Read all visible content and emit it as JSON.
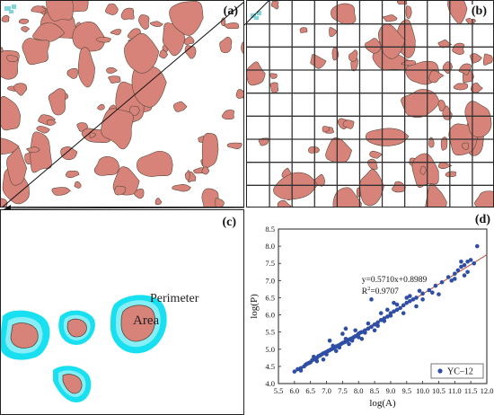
{
  "panels": {
    "a": "(a)",
    "b": "(b)",
    "c": "(c)",
    "d": "(d)"
  },
  "panel_c": {
    "area_label": "Area",
    "perimeter_label": "Perimeter"
  },
  "colors": {
    "patch_fill": "#d8837a",
    "patch_stroke": "#5a4a3a",
    "boundary_cyan": "#19e0f0",
    "boundary_light": "#86eef6",
    "grid": "#333333",
    "point": "#2f4fa6",
    "fit_line": "#c0392b"
  },
  "chart_data": {
    "type": "scatter",
    "xlabel": "log(A)",
    "ylabel": "log(P)",
    "xlim": [
      5.5,
      12.0
    ],
    "ylim": [
      4.0,
      8.5
    ],
    "xticks": [
      "5.5",
      "6.0",
      "6.5",
      "7.0",
      "7.5",
      "8.0",
      "8.5",
      "9.0",
      "9.5",
      "10.0",
      "10.5",
      "11.0",
      "11.5",
      "12.0"
    ],
    "yticks": [
      "4.0",
      "4.5",
      "5.0",
      "5.5",
      "6.0",
      "6.5",
      "7.0",
      "7.5",
      "8.0",
      "8.5"
    ],
    "legend": "YC–12",
    "legend_position": "bottom-right",
    "annotation": {
      "equation": "y=0.5710x+0.8989",
      "r2_prefix": "R",
      "r2_sup": "2",
      "r2_value": "=0.9707"
    },
    "fit": {
      "slope": 0.571,
      "intercept": 0.8989,
      "x_range": [
        6.0,
        12.0
      ]
    },
    "series": [
      {
        "name": "YC–12",
        "points": [
          [
            6.0,
            4.35
          ],
          [
            6.1,
            4.42
          ],
          [
            6.2,
            4.45
          ],
          [
            6.3,
            4.5
          ],
          [
            6.35,
            4.55
          ],
          [
            6.4,
            4.58
          ],
          [
            6.45,
            4.6
          ],
          [
            6.5,
            4.62
          ],
          [
            6.55,
            4.68
          ],
          [
            6.6,
            4.7
          ],
          [
            6.65,
            4.72
          ],
          [
            6.7,
            4.75
          ],
          [
            6.75,
            4.8
          ],
          [
            6.8,
            4.82
          ],
          [
            6.85,
            4.85
          ],
          [
            6.9,
            4.88
          ],
          [
            6.95,
            4.9
          ],
          [
            7.0,
            4.92
          ],
          [
            7.05,
            4.95
          ],
          [
            7.1,
            4.97
          ],
          [
            7.15,
            5.0
          ],
          [
            7.2,
            5.02
          ],
          [
            7.25,
            5.05
          ],
          [
            7.3,
            5.08
          ],
          [
            7.35,
            5.1
          ],
          [
            7.4,
            5.12
          ],
          [
            7.45,
            5.15
          ],
          [
            7.5,
            5.18
          ],
          [
            7.55,
            5.2
          ],
          [
            7.6,
            5.22
          ],
          [
            7.65,
            5.25
          ],
          [
            7.7,
            5.28
          ],
          [
            7.75,
            5.3
          ],
          [
            7.8,
            5.32
          ],
          [
            7.85,
            5.35
          ],
          [
            7.9,
            5.38
          ],
          [
            7.95,
            5.4
          ],
          [
            8.0,
            5.45
          ],
          [
            8.05,
            5.48
          ],
          [
            8.1,
            5.5
          ],
          [
            8.2,
            5.55
          ],
          [
            8.3,
            5.6
          ],
          [
            8.4,
            5.65
          ],
          [
            8.5,
            5.72
          ],
          [
            8.6,
            5.78
          ],
          [
            8.7,
            5.85
          ],
          [
            8.8,
            5.9
          ],
          [
            8.9,
            5.95
          ],
          [
            9.0,
            6.05
          ],
          [
            9.1,
            6.1
          ],
          [
            9.2,
            6.15
          ],
          [
            9.3,
            6.2
          ],
          [
            9.4,
            6.28
          ],
          [
            9.5,
            6.35
          ],
          [
            9.6,
            6.4
          ],
          [
            9.7,
            6.45
          ],
          [
            9.8,
            6.5
          ],
          [
            10.0,
            6.62
          ],
          [
            10.2,
            6.72
          ],
          [
            10.4,
            6.85
          ],
          [
            10.6,
            6.95
          ],
          [
            10.8,
            7.1
          ],
          [
            11.0,
            7.2
          ],
          [
            11.1,
            7.3
          ],
          [
            11.2,
            7.4
          ],
          [
            11.3,
            7.45
          ],
          [
            11.4,
            7.55
          ],
          [
            11.5,
            7.6
          ],
          [
            11.7,
            8.0
          ],
          [
            6.7,
            4.65
          ],
          [
            7.0,
            4.85
          ],
          [
            7.2,
            5.1
          ],
          [
            7.4,
            5.05
          ],
          [
            7.6,
            5.3
          ],
          [
            7.8,
            5.25
          ],
          [
            8.0,
            5.35
          ],
          [
            8.2,
            5.48
          ],
          [
            8.4,
            6.45
          ],
          [
            8.6,
            5.68
          ],
          [
            8.8,
            5.82
          ],
          [
            9.0,
            5.98
          ],
          [
            9.2,
            6.3
          ],
          [
            9.4,
            6.05
          ],
          [
            9.6,
            6.55
          ],
          [
            10.0,
            6.45
          ],
          [
            10.5,
            6.6
          ],
          [
            11.0,
            7.05
          ],
          [
            11.2,
            7.55
          ],
          [
            11.4,
            7.25
          ],
          [
            11.6,
            7.5
          ],
          [
            7.6,
            5.6
          ],
          [
            7.9,
            5.55
          ],
          [
            8.1,
            5.3
          ],
          [
            8.5,
            5.55
          ],
          [
            9.5,
            6.5
          ],
          [
            9.8,
            6.25
          ],
          [
            6.9,
            4.7
          ],
          [
            7.3,
            4.95
          ],
          [
            7.7,
            5.15
          ],
          [
            8.3,
            5.75
          ],
          [
            8.9,
            6.15
          ],
          [
            6.2,
            4.38
          ],
          [
            6.6,
            4.78
          ],
          [
            10.3,
            6.65
          ],
          [
            10.9,
            7.0
          ],
          [
            11.3,
            7.15
          ],
          [
            7.1,
            5.25
          ],
          [
            7.5,
            5.45
          ],
          [
            8.7,
            6.05
          ],
          [
            9.1,
            6.35
          ],
          [
            9.9,
            6.7
          ]
        ]
      }
    ]
  }
}
